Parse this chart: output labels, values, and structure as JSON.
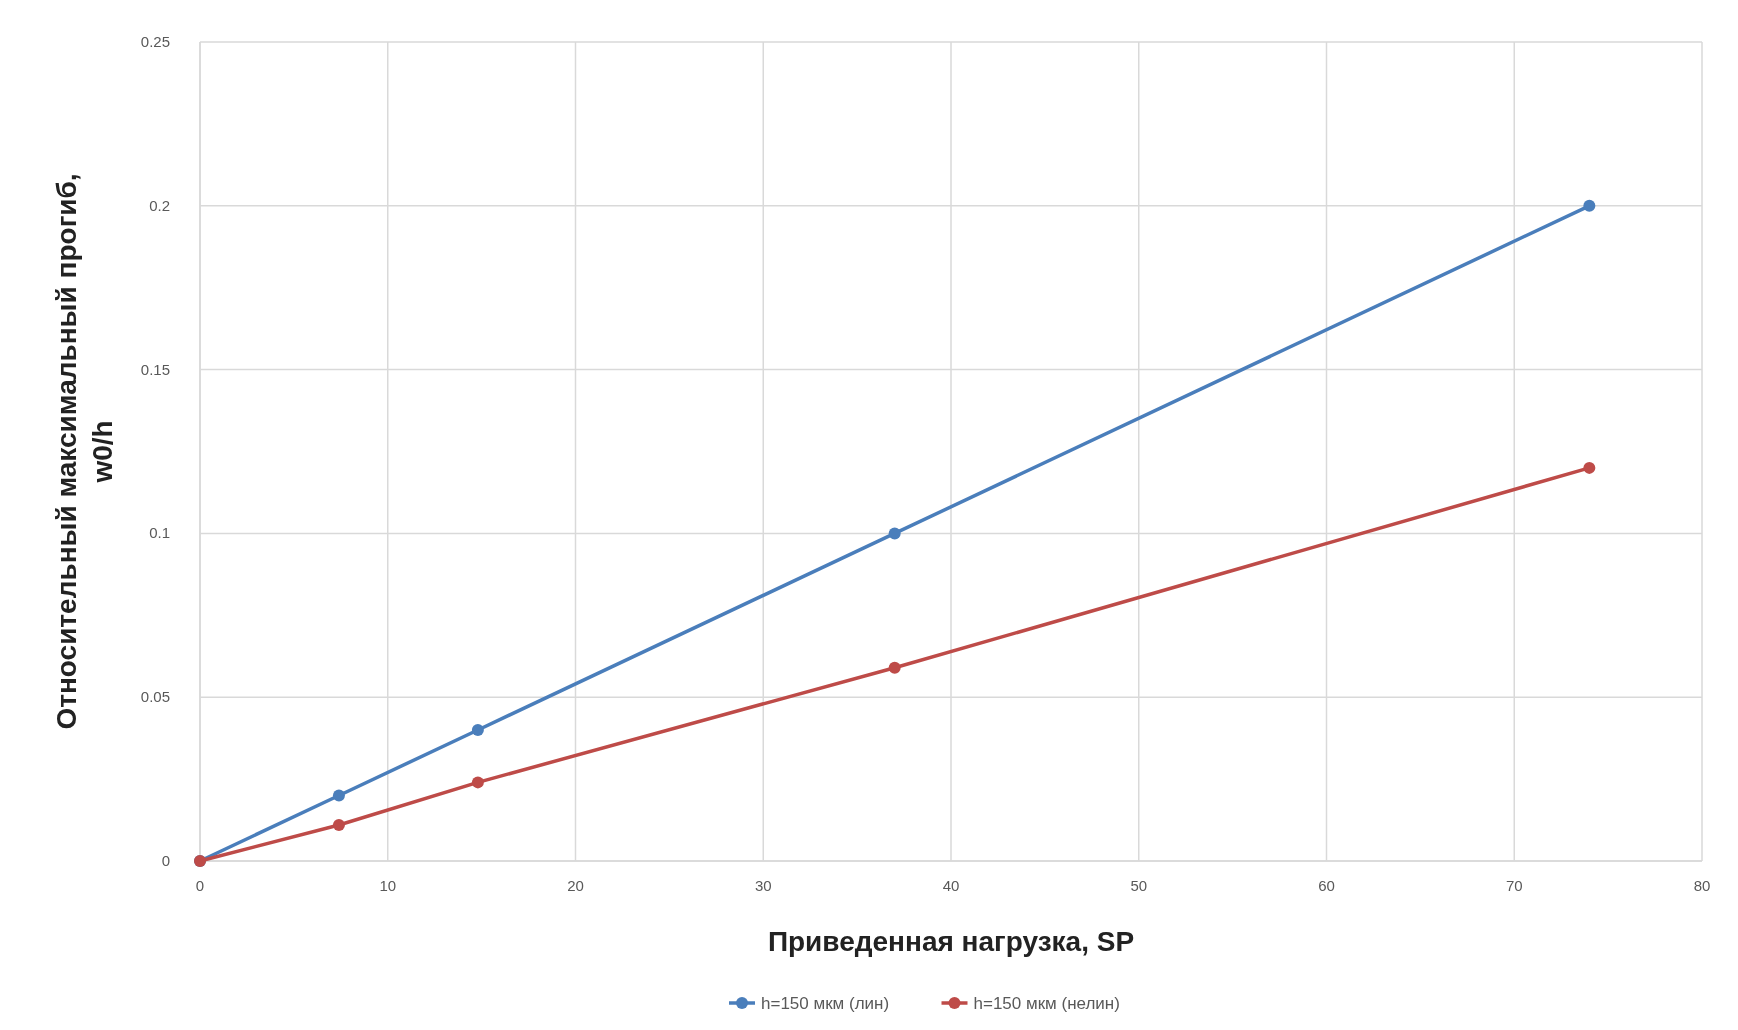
{
  "chart_data": {
    "type": "line",
    "xlabel": "Приведенная нагрузка, SP",
    "ylabel": "Относительный максимальный прогиб, w0/h",
    "x": [
      0,
      7.4,
      14.8,
      37,
      74
    ],
    "series": [
      {
        "name": "h=150 мкм (лин)",
        "color": "#4a7ebb",
        "values": [
          0,
          0.02,
          0.04,
          0.1,
          0.2
        ]
      },
      {
        "name": "h=150 мкм (нелин)",
        "color": "#be4b48",
        "values": [
          0,
          0.011,
          0.024,
          0.059,
          0.12
        ]
      }
    ],
    "xlim": [
      0,
      80
    ],
    "xticks": [
      0,
      10,
      20,
      30,
      40,
      50,
      60,
      70,
      80
    ],
    "ylim": [
      0,
      0.25
    ],
    "yticks": [
      0,
      0.05,
      0.1,
      0.15,
      0.2,
      0.25
    ],
    "grid": true,
    "legend": "bottom",
    "marker": "circle",
    "line_style": "solid"
  }
}
